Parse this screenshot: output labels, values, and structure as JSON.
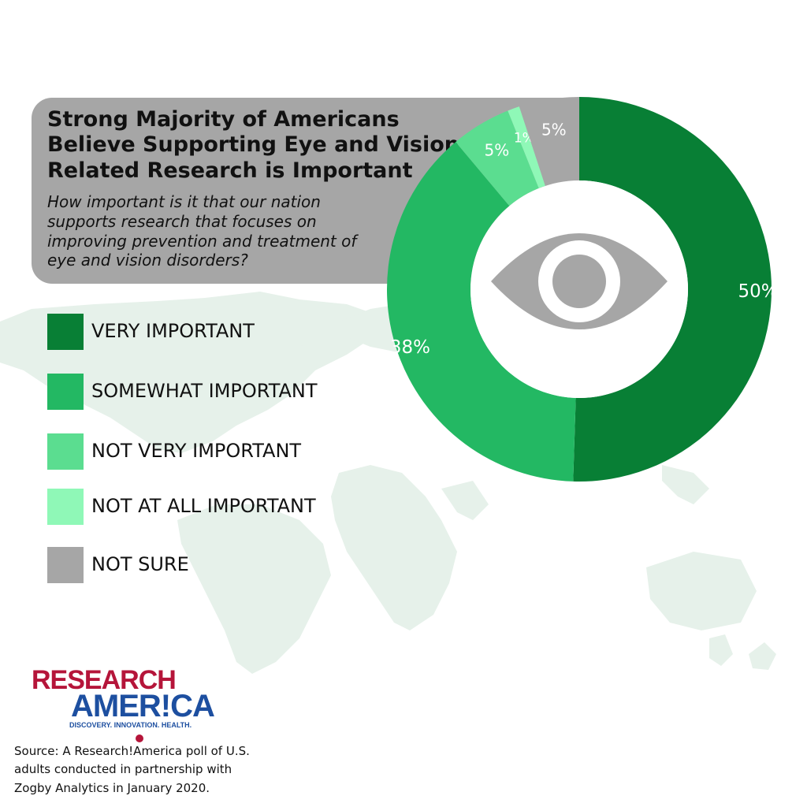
{
  "title": "Strong Majority of Americans Believe Supporting Eye and Vision Related Research is Important",
  "subtitle": "How important is it that our nation supports research that focuses on improving prevention and treatment of eye and vision disorders?",
  "colors": {
    "very_important": "#087f35",
    "somewhat_important": "#23b863",
    "not_very_important": "#5bdd90",
    "not_at_all_important": "#8ff8b7",
    "not_sure": "#a6a6a6",
    "title_box": "#a6a6a6",
    "map": "#e6f1ea"
  },
  "chart_data": {
    "type": "pie",
    "title": "Strong Majority of Americans Believe Supporting Eye and Vision Related Research is Important",
    "categories": [
      "VERY IMPORTANT",
      "SOMEWHAT IMPORTANT",
      "NOT VERY IMPORTANT",
      "NOT AT ALL IMPORTANT",
      "NOT SURE"
    ],
    "values": [
      50,
      38,
      5,
      1,
      5
    ],
    "value_labels": [
      "50%",
      "38%",
      "5%",
      "1%",
      "5%"
    ],
    "unit": "%",
    "colors": [
      "#087f35",
      "#23b863",
      "#5bdd90",
      "#8ff8b7",
      "#a6a6a6"
    ],
    "legend": "left",
    "center_icon": "eye-icon"
  },
  "legend": {
    "items": [
      {
        "label": "VERY IMPORTANT"
      },
      {
        "label": "SOMEWHAT IMPORTANT"
      },
      {
        "label": "NOT VERY IMPORTANT"
      },
      {
        "label": "NOT AT ALL IMPORTANT"
      },
      {
        "label": "NOT SURE"
      }
    ]
  },
  "logo": {
    "line1": "RESEARCH",
    "line2": "AMER!CA",
    "tagline": "DISCOVERY. INNOVATION. HEALTH."
  },
  "source": "Source:  A Research!America poll of U.S. adults conducted in partnership with Zogby Analytics in January 2020."
}
